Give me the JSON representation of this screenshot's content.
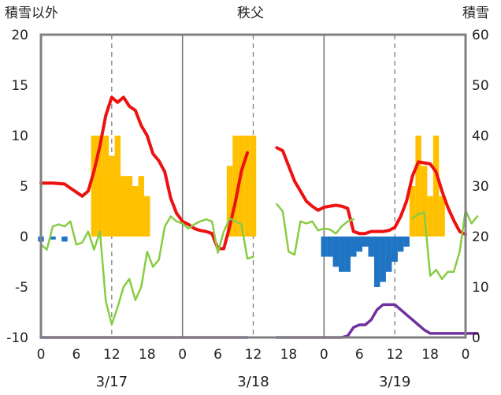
{
  "chart_data": {
    "type": "bar",
    "title": "秩父",
    "ylabel_left": "積雪以外",
    "ylabel_right": "積雪",
    "ylim_left": [
      -10,
      20
    ],
    "ylim_right": [
      0,
      60
    ],
    "yticks_left": [
      "20",
      "15",
      "10",
      "5",
      "0",
      "-5",
      "-10"
    ],
    "yticks_right": [
      "60",
      "50",
      "40",
      "30",
      "20",
      "10",
      "0"
    ],
    "xtick_labels": [
      "0",
      "6",
      "12",
      "18",
      "0",
      "6",
      "12",
      "18",
      "0",
      "6",
      "12",
      "18",
      "0"
    ],
    "date_labels": [
      "3/17",
      "3/18",
      "3/19"
    ],
    "grid": "vertical-dashed-and-day-separators",
    "legend": "none",
    "colors": {
      "temperature": "#ee1111",
      "humidity_like": "#88cc44",
      "positive_bar": "#ffc000",
      "negative_bar": "#1f74c4",
      "snow": "#7030a0",
      "frame": "#808080",
      "grid": "#7f7f7f"
    },
    "bars_hourly": [
      [
        0,
        -0.5
      ],
      [
        2,
        -0.3
      ],
      [
        4,
        -0.5
      ],
      [
        9,
        10
      ],
      [
        10,
        10
      ],
      [
        11,
        10
      ],
      [
        12,
        8
      ],
      [
        13,
        10
      ],
      [
        14,
        6
      ],
      [
        15,
        6
      ],
      [
        16,
        5
      ],
      [
        17,
        6
      ],
      [
        18,
        4
      ],
      [
        32,
        7
      ],
      [
        33,
        10
      ],
      [
        34,
        10
      ],
      [
        35,
        10
      ],
      [
        36,
        10
      ],
      [
        48,
        -2
      ],
      [
        49,
        -2
      ],
      [
        50,
        -3
      ],
      [
        51,
        -3.5
      ],
      [
        52,
        -3.5
      ],
      [
        53,
        -2
      ],
      [
        54,
        -1.5
      ],
      [
        55,
        -1
      ],
      [
        56,
        -2
      ],
      [
        57,
        -5
      ],
      [
        58,
        -4.5
      ],
      [
        59,
        -3.5
      ],
      [
        60,
        -2.5
      ],
      [
        61,
        -1.5
      ],
      [
        62,
        -1
      ],
      [
        63,
        5
      ],
      [
        64,
        10
      ],
      [
        65,
        7
      ],
      [
        66,
        4
      ],
      [
        67,
        10
      ],
      [
        68,
        4
      ]
    ],
    "series": [
      {
        "key": "temperature",
        "axis": "left",
        "segments": [
          [
            [
              0,
              5.3
            ],
            [
              2,
              5.3
            ],
            [
              4,
              5.2
            ],
            [
              5,
              4.8
            ],
            [
              6,
              4.4
            ],
            [
              7,
              4.0
            ],
            [
              8,
              4.5
            ],
            [
              9,
              6.5
            ],
            [
              10,
              9.0
            ],
            [
              11,
              12.0
            ],
            [
              12,
              13.8
            ],
            [
              13,
              13.3
            ],
            [
              14,
              13.8
            ],
            [
              15,
              12.9
            ],
            [
              16,
              12.5
            ],
            [
              17,
              11.0
            ],
            [
              18,
              10.0
            ],
            [
              19,
              8.2
            ],
            [
              20,
              7.5
            ],
            [
              21,
              6.4
            ],
            [
              22,
              3.8
            ],
            [
              23,
              2.3
            ],
            [
              24,
              1.5
            ],
            [
              25,
              1.2
            ],
            [
              26,
              0.8
            ],
            [
              27,
              0.6
            ],
            [
              28,
              0.5
            ],
            [
              29,
              0.3
            ],
            [
              30,
              -1.2
            ],
            [
              31,
              -1.2
            ],
            [
              32,
              1.0
            ],
            [
              33,
              3.5
            ],
            [
              34,
              6.5
            ],
            [
              35,
              8.3
            ]
          ],
          [
            [
              40,
              8.8
            ],
            [
              41,
              8.5
            ],
            [
              42,
              7.0
            ],
            [
              43,
              5.5
            ],
            [
              44,
              4.5
            ],
            [
              45,
              3.5
            ],
            [
              46,
              3.0
            ],
            [
              47,
              2.6
            ],
            [
              48,
              2.9
            ],
            [
              49,
              3.0
            ],
            [
              50,
              3.1
            ],
            [
              51,
              3.0
            ],
            [
              52,
              2.8
            ],
            [
              53,
              0.5
            ],
            [
              54,
              0.3
            ],
            [
              55,
              0.3
            ],
            [
              56,
              0.5
            ],
            [
              57,
              0.5
            ],
            [
              58,
              0.5
            ],
            [
              59,
              0.6
            ],
            [
              60,
              0.9
            ],
            [
              61,
              2.0
            ],
            [
              62,
              3.5
            ],
            [
              63,
              6.0
            ],
            [
              64,
              7.4
            ],
            [
              65,
              7.3
            ],
            [
              66,
              7.2
            ],
            [
              67,
              6.4
            ],
            [
              68,
              4.5
            ],
            [
              69,
              2.9
            ],
            [
              70,
              1.6
            ],
            [
              71,
              0.5
            ],
            [
              72,
              0.2
            ]
          ]
        ]
      },
      {
        "key": "humidity_like",
        "axis": "left",
        "segments": [
          [
            [
              0,
              -0.8
            ],
            [
              1,
              -1.3
            ],
            [
              2,
              1.0
            ],
            [
              3,
              1.2
            ],
            [
              4,
              1.0
            ],
            [
              5,
              1.5
            ],
            [
              6,
              -0.8
            ],
            [
              7,
              -0.6
            ],
            [
              8,
              0.5
            ],
            [
              9,
              -1.3
            ],
            [
              10,
              0.5
            ],
            [
              11,
              -6.4
            ],
            [
              12,
              -8.7
            ],
            [
              13,
              -7.0
            ],
            [
              14,
              -5.0
            ],
            [
              15,
              -4.2
            ],
            [
              16,
              -6.3
            ],
            [
              17,
              -5.0
            ],
            [
              18,
              -1.5
            ],
            [
              19,
              -3.0
            ],
            [
              20,
              -2.3
            ],
            [
              21,
              1.0
            ],
            [
              22,
              2.0
            ],
            [
              23,
              1.5
            ],
            [
              24,
              1.3
            ],
            [
              25,
              0.8
            ],
            [
              26,
              1.2
            ],
            [
              27,
              1.5
            ],
            [
              28,
              1.7
            ],
            [
              29,
              1.5
            ],
            [
              30,
              -1.6
            ],
            [
              31,
              0.5
            ],
            [
              32,
              1.8
            ],
            [
              33,
              1.5
            ],
            [
              34,
              1.2
            ],
            [
              35,
              -2.2
            ],
            [
              36,
              -2.0
            ]
          ],
          [
            [
              40,
              3.2
            ],
            [
              41,
              2.5
            ],
            [
              42,
              -1.5
            ],
            [
              43,
              -1.8
            ],
            [
              44,
              1.5
            ],
            [
              45,
              1.3
            ],
            [
              46,
              1.5
            ],
            [
              47,
              0.6
            ],
            [
              48,
              0.8
            ],
            [
              49,
              0.7
            ],
            [
              50,
              0.3
            ],
            [
              51,
              1.0
            ],
            [
              52,
              1.5
            ],
            [
              53,
              1.7
            ]
          ],
          [
            [
              63,
              1.8
            ],
            [
              64,
              2.2
            ],
            [
              65,
              2.4
            ],
            [
              66,
              -3.9
            ],
            [
              67,
              -3.3
            ],
            [
              68,
              -4.2
            ],
            [
              69,
              -3.5
            ],
            [
              70,
              -3.5
            ],
            [
              71,
              -1.5
            ],
            [
              72,
              2.6
            ],
            [
              73,
              1.3
            ],
            [
              74,
              2.0
            ]
          ]
        ]
      },
      {
        "key": "snow",
        "axis": "right",
        "segments": [
          [
            [
              0,
              0
            ],
            [
              35,
              0
            ]
          ],
          [
            [
              40,
              0
            ],
            [
              51,
              0
            ],
            [
              52,
              0.3
            ],
            [
              53,
              2
            ],
            [
              54,
              2.5
            ],
            [
              55,
              2.5
            ],
            [
              56,
              3.5
            ],
            [
              57,
              5.5
            ],
            [
              58,
              6.5
            ],
            [
              59,
              6.5
            ],
            [
              60,
              6.5
            ],
            [
              61,
              5.5
            ],
            [
              62,
              4.5
            ],
            [
              63,
              3.5
            ],
            [
              64,
              2.5
            ],
            [
              65,
              1.5
            ],
            [
              66,
              0.8
            ],
            [
              67,
              0.8
            ],
            [
              74,
              0.8
            ]
          ]
        ]
      }
    ]
  }
}
